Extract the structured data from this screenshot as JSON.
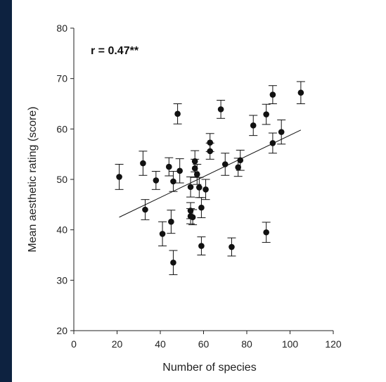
{
  "chart_data": {
    "type": "scatter",
    "title": "",
    "annotation": "r = 0.47**",
    "xlabel": "Number of species",
    "ylabel": "Mean aesthetic rating (score)",
    "xlim": [
      0,
      120
    ],
    "ylim": [
      20,
      80
    ],
    "xticks": [
      0,
      20,
      40,
      60,
      80,
      100,
      120
    ],
    "yticks": [
      20,
      30,
      40,
      50,
      60,
      70,
      80
    ],
    "grid": false,
    "trendline": {
      "x": [
        21,
        105
      ],
      "y": [
        42.5,
        59.8
      ]
    },
    "points": [
      {
        "x": 21,
        "y": 50.5,
        "err": 2.5
      },
      {
        "x": 32,
        "y": 53.2,
        "err": 2.4
      },
      {
        "x": 33,
        "y": 44.0,
        "err": 2.0
      },
      {
        "x": 38,
        "y": 49.8,
        "err": 1.8
      },
      {
        "x": 41,
        "y": 39.2,
        "err": 2.4
      },
      {
        "x": 44,
        "y": 52.5,
        "err": 1.8
      },
      {
        "x": 45,
        "y": 41.6,
        "err": 2.3
      },
      {
        "x": 46,
        "y": 49.6,
        "err": 2.0
      },
      {
        "x": 46,
        "y": 33.5,
        "err": 2.4
      },
      {
        "x": 48,
        "y": 63.0,
        "err": 2.0
      },
      {
        "x": 49,
        "y": 51.7,
        "err": 2.4
      },
      {
        "x": 54,
        "y": 48.5,
        "err": 2.0
      },
      {
        "x": 54,
        "y": 43.8,
        "err": 1.6
      },
      {
        "x": 54,
        "y": 42.7,
        "err": 1.5
      },
      {
        "x": 55,
        "y": 42.5,
        "err": 1.5
      },
      {
        "x": 56,
        "y": 52.2,
        "err": 1.8
      },
      {
        "x": 56,
        "y": 53.6,
        "err": 2.1
      },
      {
        "x": 57,
        "y": 51.0,
        "err": 2.0
      },
      {
        "x": 58,
        "y": 48.4,
        "err": 2.0
      },
      {
        "x": 59,
        "y": 44.4,
        "err": 2.0
      },
      {
        "x": 59,
        "y": 36.8,
        "err": 1.8
      },
      {
        "x": 61,
        "y": 48.0,
        "err": 2.0
      },
      {
        "x": 63,
        "y": 57.3,
        "err": 1.8
      },
      {
        "x": 63,
        "y": 55.6,
        "err": 1.6
      },
      {
        "x": 68,
        "y": 63.9,
        "err": 1.8
      },
      {
        "x": 70,
        "y": 53.0,
        "err": 2.2
      },
      {
        "x": 73,
        "y": 36.6,
        "err": 1.8
      },
      {
        "x": 76,
        "y": 52.4,
        "err": 1.8
      },
      {
        "x": 77,
        "y": 53.8,
        "err": 2.0
      },
      {
        "x": 83,
        "y": 60.7,
        "err": 2.0
      },
      {
        "x": 89,
        "y": 39.5,
        "err": 2.0
      },
      {
        "x": 89,
        "y": 62.9,
        "err": 2.0
      },
      {
        "x": 92,
        "y": 66.8,
        "err": 1.8
      },
      {
        "x": 92,
        "y": 57.2,
        "err": 2.0
      },
      {
        "x": 96,
        "y": 59.4,
        "err": 2.4
      },
      {
        "x": 105,
        "y": 67.2,
        "err": 2.2
      }
    ],
    "colors": {
      "background": "#0d2240",
      "panel": "#ffffff",
      "marker": "#111111",
      "axis": "#222222"
    }
  }
}
